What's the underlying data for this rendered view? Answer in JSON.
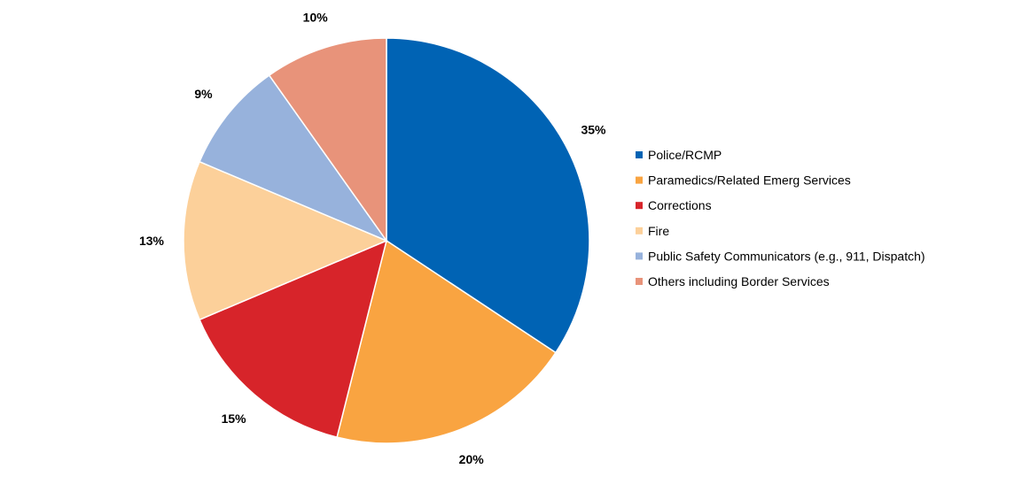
{
  "chart_data": {
    "type": "pie",
    "title": "",
    "legend_position": "right",
    "slices": [
      {
        "name": "Police/RCMP",
        "value": 35,
        "label": "35%",
        "color": "#0063B4"
      },
      {
        "name": "Paramedics/Related Emerg Services",
        "value": 20,
        "label": "20%",
        "color": "#F9A441"
      },
      {
        "name": "Corrections",
        "value": 15,
        "label": "15%",
        "color": "#D7242A"
      },
      {
        "name": "Fire",
        "value": 13,
        "label": "13%",
        "color": "#FCD09A"
      },
      {
        "name": "Public Safety Communicators (e.g., 911, Dispatch)",
        "value": 9,
        "label": "9%",
        "color": "#97B2DC"
      },
      {
        "name": "Others including Border Services",
        "value": 10,
        "label": "10%",
        "color": "#E8937A"
      }
    ]
  }
}
